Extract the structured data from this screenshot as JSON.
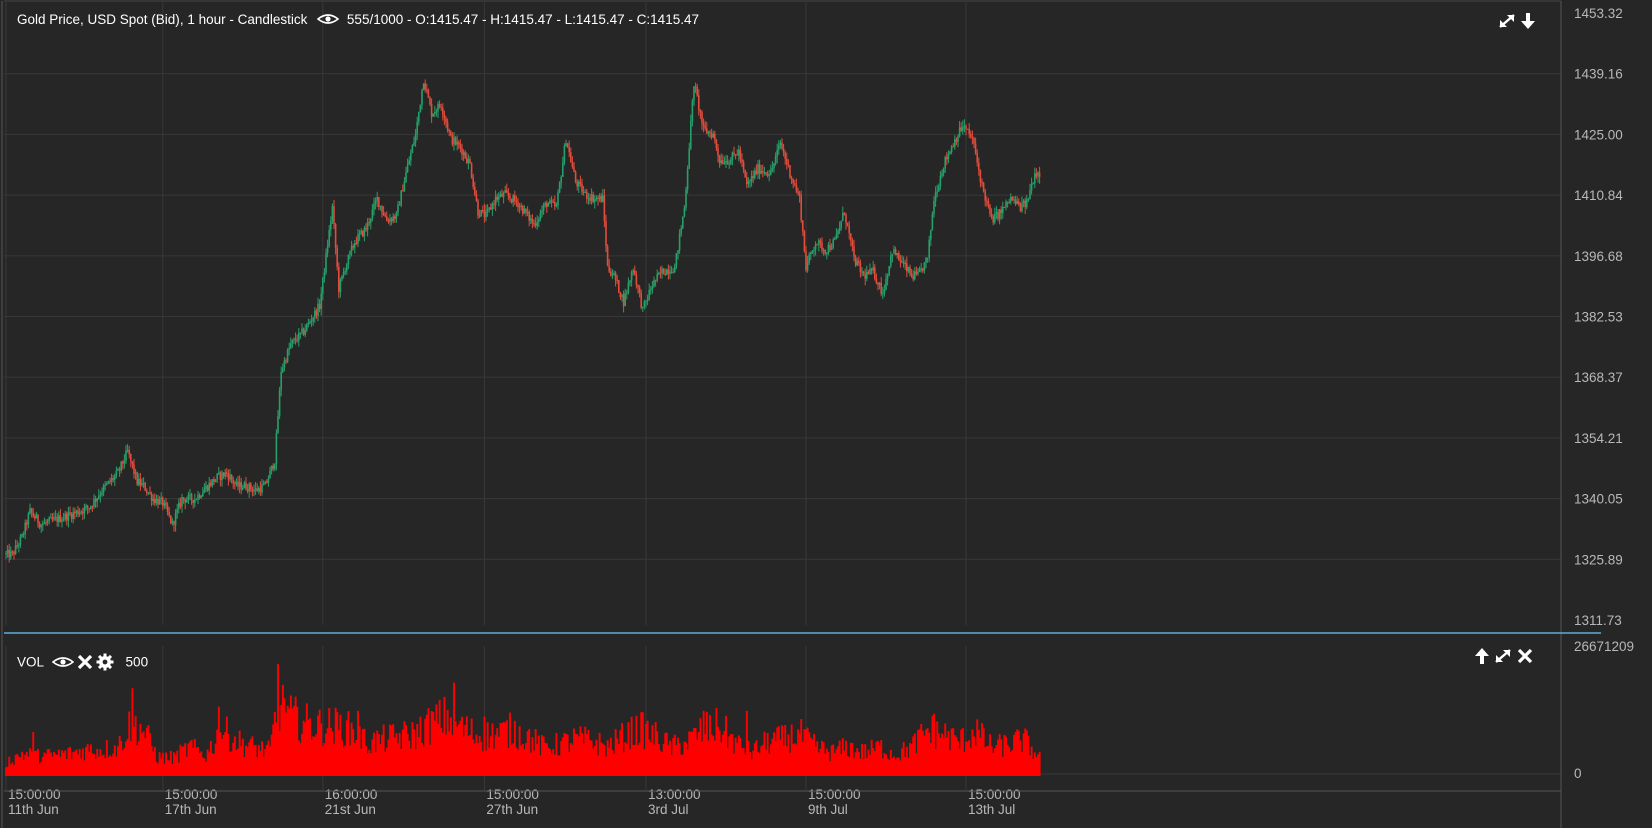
{
  "header": {
    "instrument": "Gold Price, USD Spot (Bid)",
    "interval": "1 hour",
    "style": "Candlestick",
    "count": "555/1000",
    "open": "O:1415.47",
    "high": "H:1415.47",
    "low": "L:1415.47",
    "close": "C:1415.47"
  },
  "volume_panel": {
    "label": "VOL",
    "period": "500",
    "max_label": "26671209",
    "zero_label": "0"
  },
  "icons": {
    "header_right": [
      "expand-icon",
      "arrow-down-icon"
    ],
    "volume_left": [
      "eye-icon",
      "close-icon",
      "gear-icon"
    ],
    "volume_right": [
      "arrow-up-icon",
      "expand-icon",
      "close-icon"
    ]
  },
  "colors": {
    "background": "#262626",
    "grid": "#383838",
    "up": "#26a06a",
    "down": "#e24c3c",
    "volume": "#ff0000",
    "separator": "#5aaed6",
    "text": "#ffffff",
    "axis_text": "#b8b8b8"
  },
  "chart_data": {
    "type": "candlestick",
    "title": "Gold Price, USD Spot (Bid) - 1 hour - Candlestick",
    "y_ticks": [
      1453.32,
      1439.16,
      1425.0,
      1410.84,
      1396.68,
      1382.53,
      1368.37,
      1354.21,
      1340.05,
      1325.89,
      1311.73
    ],
    "y_tick_labels": [
      "1453.32",
      "1439.16",
      "1425.00",
      "1410.84",
      "1396.68",
      "1382.53",
      "1368.37",
      "1354.21",
      "1340.05",
      "1325.89",
      "1311.73"
    ],
    "ylim": [
      1311.73,
      1453.32
    ],
    "x_ticks": [
      {
        "time": "15:00:00",
        "date": "11th Jun"
      },
      {
        "time": "15:00:00",
        "date": "17th Jun"
      },
      {
        "time": "16:00:00",
        "date": "21st Jun"
      },
      {
        "time": "15:00:00",
        "date": "27th Jun"
      },
      {
        "time": "13:00:00",
        "date": "3rd Jul"
      },
      {
        "time": "15:00:00",
        "date": "9th Jul"
      },
      {
        "time": "15:00:00",
        "date": "13th Jul"
      }
    ],
    "x_tick_index": [
      0,
      98,
      198,
      299,
      400,
      500,
      600
    ],
    "price_path": [
      [
        0,
        1327
      ],
      [
        4,
        1327
      ],
      [
        10,
        1331
      ],
      [
        15,
        1337
      ],
      [
        22,
        1334
      ],
      [
        30,
        1335
      ],
      [
        38,
        1336
      ],
      [
        45,
        1337
      ],
      [
        52,
        1338
      ],
      [
        60,
        1342
      ],
      [
        70,
        1346
      ],
      [
        76,
        1351
      ],
      [
        82,
        1344
      ],
      [
        86,
        1343
      ],
      [
        92,
        1340
      ],
      [
        98,
        1339
      ],
      [
        104,
        1334
      ],
      [
        110,
        1340
      ],
      [
        118,
        1340
      ],
      [
        126,
        1343
      ],
      [
        132,
        1345
      ],
      [
        138,
        1346
      ],
      [
        144,
        1343
      ],
      [
        150,
        1343
      ],
      [
        156,
        1342
      ],
      [
        162,
        1343
      ],
      [
        168,
        1349
      ],
      [
        172,
        1370
      ],
      [
        178,
        1376
      ],
      [
        186,
        1379
      ],
      [
        196,
        1385
      ],
      [
        204,
        1408
      ],
      [
        208,
        1389
      ],
      [
        212,
        1394
      ],
      [
        218,
        1400
      ],
      [
        225,
        1403
      ],
      [
        232,
        1410
      ],
      [
        238,
        1405
      ],
      [
        244,
        1406
      ],
      [
        250,
        1416
      ],
      [
        256,
        1425
      ],
      [
        261,
        1438
      ],
      [
        266,
        1430
      ],
      [
        272,
        1432
      ],
      [
        278,
        1424
      ],
      [
        284,
        1422
      ],
      [
        290,
        1418
      ],
      [
        295,
        1407
      ],
      [
        300,
        1406
      ],
      [
        306,
        1410
      ],
      [
        312,
        1411
      ],
      [
        320,
        1409
      ],
      [
        330,
        1404
      ],
      [
        338,
        1409
      ],
      [
        344,
        1408
      ],
      [
        350,
        1424
      ],
      [
        356,
        1414
      ],
      [
        362,
        1411
      ],
      [
        368,
        1410
      ],
      [
        373,
        1410
      ],
      [
        376,
        1394
      ],
      [
        380,
        1392
      ],
      [
        386,
        1386
      ],
      [
        392,
        1394
      ],
      [
        398,
        1384
      ],
      [
        404,
        1390
      ],
      [
        410,
        1393
      ],
      [
        418,
        1394
      ],
      [
        424,
        1408
      ],
      [
        430,
        1437
      ],
      [
        436,
        1426
      ],
      [
        442,
        1425
      ],
      [
        446,
        1419
      ],
      [
        452,
        1419
      ],
      [
        458,
        1421
      ],
      [
        463,
        1413
      ],
      [
        470,
        1417
      ],
      [
        478,
        1416
      ],
      [
        484,
        1423
      ],
      [
        490,
        1416
      ],
      [
        496,
        1410
      ],
      [
        500,
        1394
      ],
      [
        506,
        1400
      ],
      [
        512,
        1398
      ],
      [
        518,
        1400
      ],
      [
        524,
        1407
      ],
      [
        530,
        1396
      ],
      [
        536,
        1392
      ],
      [
        542,
        1393
      ],
      [
        548,
        1388
      ],
      [
        554,
        1398
      ],
      [
        560,
        1395
      ],
      [
        566,
        1392
      ],
      [
        570,
        1392
      ],
      [
        576,
        1396
      ],
      [
        580,
        1410
      ],
      [
        586,
        1418
      ],
      [
        592,
        1423
      ],
      [
        598,
        1427
      ],
      [
        604,
        1424
      ],
      [
        610,
        1413
      ],
      [
        616,
        1405
      ],
      [
        622,
        1407
      ],
      [
        628,
        1410
      ],
      [
        634,
        1408
      ],
      [
        638,
        1409
      ],
      [
        643,
        1416
      ],
      [
        646,
        1416
      ]
    ],
    "volume_ylim": [
      0,
      26671209
    ],
    "volume_profile": [
      [
        0,
        0.1
      ],
      [
        10,
        0.17
      ],
      [
        20,
        0.15
      ],
      [
        30,
        0.16
      ],
      [
        40,
        0.17
      ],
      [
        50,
        0.2
      ],
      [
        60,
        0.2
      ],
      [
        70,
        0.22
      ],
      [
        78,
        0.4
      ],
      [
        86,
        0.35
      ],
      [
        95,
        0.14
      ],
      [
        105,
        0.14
      ],
      [
        115,
        0.22
      ],
      [
        125,
        0.16
      ],
      [
        135,
        0.35
      ],
      [
        145,
        0.26
      ],
      [
        155,
        0.22
      ],
      [
        165,
        0.19
      ],
      [
        170,
        0.55
      ],
      [
        178,
        0.45
      ],
      [
        188,
        0.4
      ],
      [
        196,
        0.38
      ],
      [
        206,
        0.38
      ],
      [
        216,
        0.35
      ],
      [
        226,
        0.25
      ],
      [
        236,
        0.28
      ],
      [
        246,
        0.3
      ],
      [
        256,
        0.32
      ],
      [
        266,
        0.4
      ],
      [
        276,
        0.45
      ],
      [
        286,
        0.36
      ],
      [
        296,
        0.3
      ],
      [
        306,
        0.32
      ],
      [
        316,
        0.35
      ],
      [
        326,
        0.3
      ],
      [
        336,
        0.22
      ],
      [
        346,
        0.24
      ],
      [
        356,
        0.28
      ],
      [
        366,
        0.27
      ],
      [
        376,
        0.22
      ],
      [
        386,
        0.3
      ],
      [
        396,
        0.36
      ],
      [
        406,
        0.3
      ],
      [
        416,
        0.22
      ],
      [
        426,
        0.26
      ],
      [
        436,
        0.35
      ],
      [
        446,
        0.38
      ],
      [
        456,
        0.25
      ],
      [
        466,
        0.18
      ],
      [
        476,
        0.26
      ],
      [
        486,
        0.28
      ],
      [
        496,
        0.32
      ],
      [
        506,
        0.22
      ],
      [
        516,
        0.18
      ],
      [
        526,
        0.22
      ],
      [
        536,
        0.18
      ],
      [
        546,
        0.22
      ],
      [
        556,
        0.16
      ],
      [
        566,
        0.22
      ],
      [
        576,
        0.35
      ],
      [
        586,
        0.32
      ],
      [
        596,
        0.26
      ],
      [
        606,
        0.34
      ],
      [
        616,
        0.22
      ],
      [
        626,
        0.24
      ],
      [
        636,
        0.28
      ],
      [
        646,
        0.14
      ]
    ],
    "volume_spikes": [
      [
        79,
        0.62
      ],
      [
        170,
        0.79
      ],
      [
        174,
        0.55
      ],
      [
        280,
        0.66
      ],
      [
        220,
        0.46
      ],
      [
        299,
        0.42
      ],
      [
        436,
        0.46
      ],
      [
        463,
        0.46
      ],
      [
        580,
        0.44
      ],
      [
        607,
        0.4
      ],
      [
        133,
        0.49
      ],
      [
        17,
        0.31
      ]
    ]
  }
}
